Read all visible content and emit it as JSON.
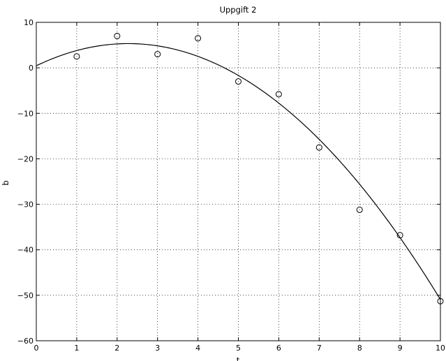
{
  "chart_data": {
    "type": "scatter",
    "title": "Uppgift 2",
    "xlabel": "t",
    "ylabel": "b",
    "xlim": [
      0,
      10
    ],
    "ylim": [
      -60,
      10
    ],
    "xticks": [
      "0",
      "1",
      "2",
      "3",
      "4",
      "5",
      "6",
      "7",
      "8",
      "9",
      "10"
    ],
    "yticks": [
      "10",
      "0",
      "−10",
      "−20",
      "−30",
      "−40",
      "−50",
      "−60"
    ],
    "ytick_values": [
      10,
      0,
      -10,
      -20,
      -30,
      -40,
      -50,
      -60
    ],
    "xtick_values": [
      0,
      1,
      2,
      3,
      4,
      5,
      6,
      7,
      8,
      9,
      10
    ],
    "grid": true,
    "grid_style": "dotted",
    "series": [
      {
        "type": "scatter",
        "marker": "circle-open",
        "color": "#000000",
        "points": [
          {
            "x": 1,
            "y": 2.5
          },
          {
            "x": 2,
            "y": 7.0
          },
          {
            "x": 3,
            "y": 3.0
          },
          {
            "x": 4,
            "y": 6.5
          },
          {
            "x": 5,
            "y": -3.0
          },
          {
            "x": 6,
            "y": -5.8
          },
          {
            "x": 7,
            "y": -17.5
          },
          {
            "x": 8,
            "y": -31.2
          },
          {
            "x": 9,
            "y": -36.8
          },
          {
            "x": 10,
            "y": -51.3
          }
        ]
      },
      {
        "type": "line",
        "color": "#000000",
        "fit": "quadratic",
        "coefficients": {
          "c0": 0.45,
          "c1": 4.29,
          "c2": -0.943
        },
        "x_range": [
          0,
          10
        ]
      }
    ]
  }
}
